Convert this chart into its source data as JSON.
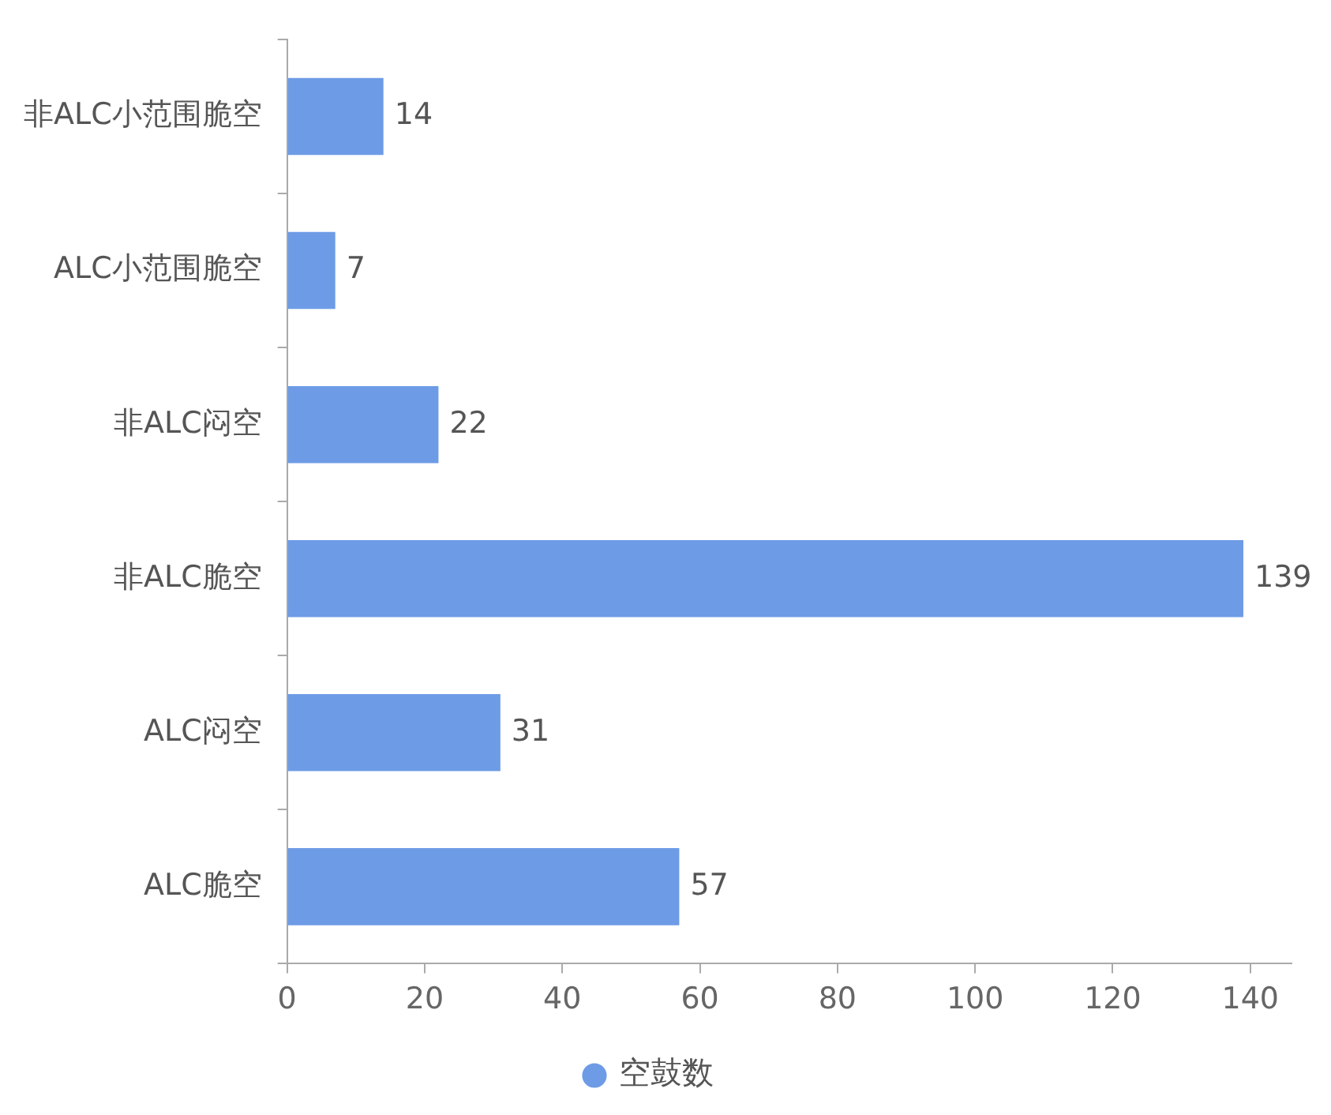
{
  "chart_data": {
    "type": "bar",
    "orientation": "horizontal",
    "categories": [
      "非ALC小范围脆空",
      "ALC小范围脆空",
      "非ALC闷空",
      "非ALC脆空",
      "ALC闷空",
      "ALC脆空"
    ],
    "series": [
      {
        "name": "空鼓数",
        "color": "#6d9be6",
        "values": [
          14,
          7,
          22,
          139,
          31,
          57
        ]
      }
    ],
    "xlim": [
      0,
      146
    ],
    "xticks": [
      0,
      20,
      40,
      60,
      80,
      100,
      120,
      140
    ],
    "grid": false,
    "legend": "bottom",
    "marker": "circle",
    "data_labels": true
  }
}
